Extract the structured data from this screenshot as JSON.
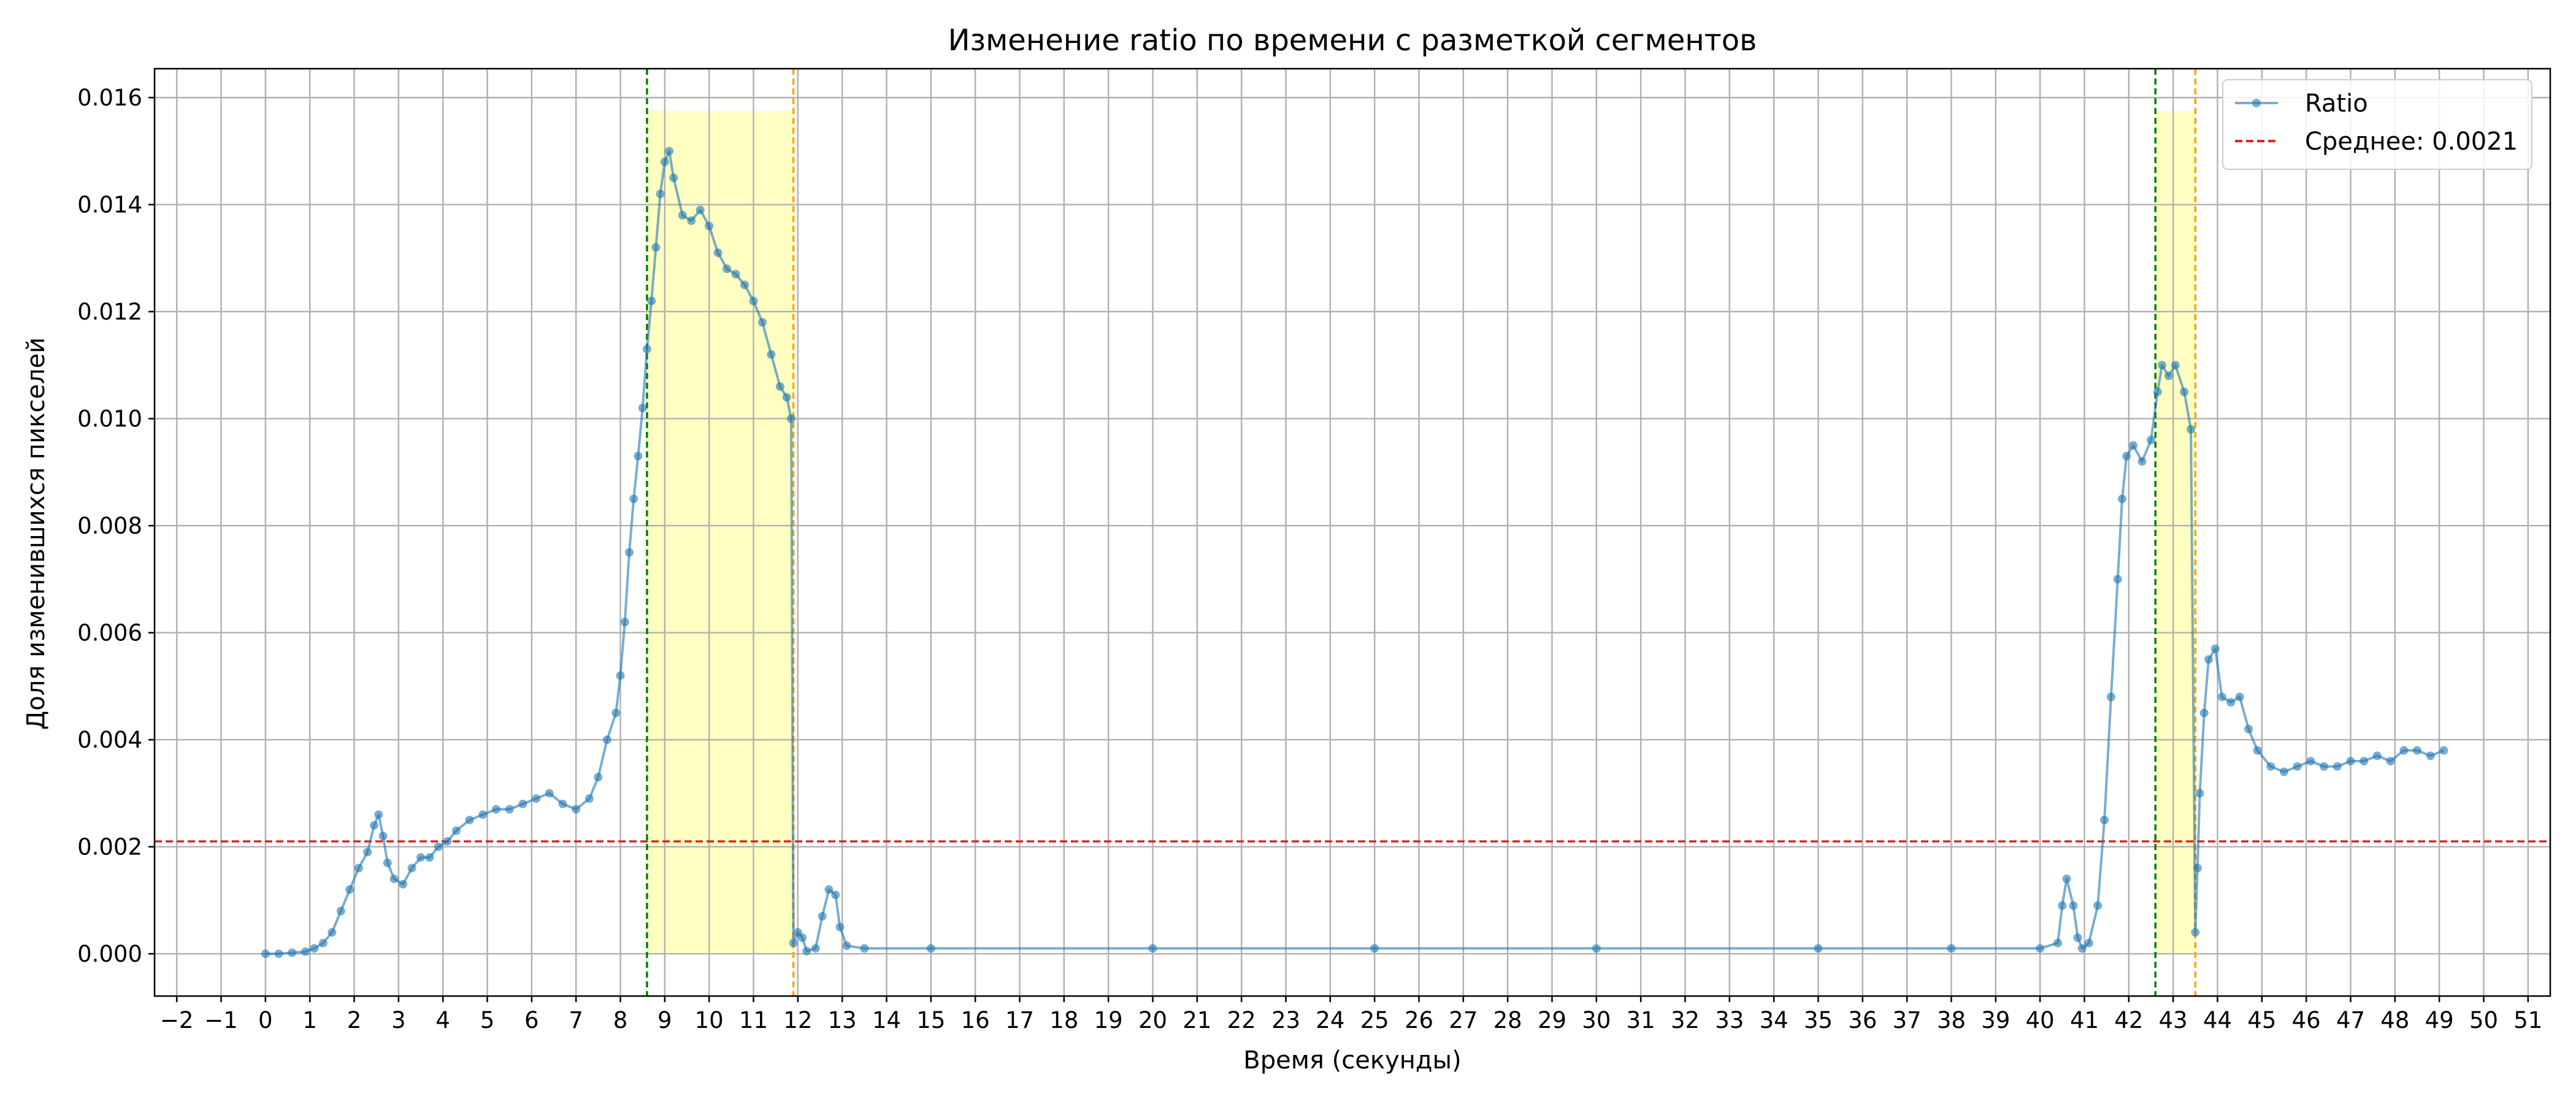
{
  "chart_data": {
    "type": "line",
    "title": "Изменение ratio по времени с разметкой сегментов",
    "xlabel": "Время (секунды)",
    "ylabel": "Доля изменившихся пикселей",
    "xlim": [
      -2.5,
      51.5
    ],
    "ylim": [
      -0.00079,
      0.01654
    ],
    "x_ticks": [
      -2,
      -1,
      0,
      1,
      2,
      3,
      4,
      5,
      6,
      7,
      8,
      9,
      10,
      11,
      12,
      13,
      14,
      15,
      16,
      17,
      18,
      19,
      20,
      21,
      22,
      23,
      24,
      25,
      26,
      27,
      28,
      29,
      30,
      31,
      32,
      33,
      34,
      35,
      36,
      37,
      38,
      39,
      40,
      41,
      42,
      43,
      44,
      45,
      46,
      47,
      48,
      49,
      50,
      51
    ],
    "x_tick_labels": [
      "−2",
      "−1",
      "0",
      "1",
      "2",
      "3",
      "4",
      "5",
      "6",
      "7",
      "8",
      "9",
      "10",
      "11",
      "12",
      "13",
      "14",
      "15",
      "16",
      "17",
      "18",
      "19",
      "20",
      "21",
      "22",
      "23",
      "24",
      "25",
      "26",
      "27",
      "28",
      "29",
      "30",
      "31",
      "32",
      "33",
      "34",
      "35",
      "36",
      "37",
      "38",
      "39",
      "40",
      "41",
      "42",
      "43",
      "44",
      "45",
      "46",
      "47",
      "48",
      "49",
      "50",
      "51"
    ],
    "y_ticks": [
      0,
      0.002,
      0.004,
      0.006,
      0.008,
      0.01,
      0.012,
      0.014,
      0.016
    ],
    "y_tick_labels": [
      "0.000",
      "0.002",
      "0.004",
      "0.006",
      "0.008",
      "0.010",
      "0.012",
      "0.014",
      "0.016"
    ],
    "grid": true,
    "legend_position": "top-right",
    "series": [
      {
        "name": "Ratio",
        "color": "#1f77b4",
        "points": [
          [
            0.0,
            0.0
          ],
          [
            0.3,
            0.0
          ],
          [
            0.6,
            2e-05
          ],
          [
            0.9,
            4e-05
          ],
          [
            1.1,
            0.0001
          ],
          [
            1.3,
            0.0002
          ],
          [
            1.5,
            0.0004
          ],
          [
            1.7,
            0.0008
          ],
          [
            1.9,
            0.0012
          ],
          [
            2.1,
            0.0016
          ],
          [
            2.3,
            0.0019
          ],
          [
            2.45,
            0.0024
          ],
          [
            2.55,
            0.0026
          ],
          [
            2.65,
            0.0022
          ],
          [
            2.75,
            0.0017
          ],
          [
            2.9,
            0.0014
          ],
          [
            3.1,
            0.0013
          ],
          [
            3.3,
            0.0016
          ],
          [
            3.5,
            0.0018
          ],
          [
            3.7,
            0.0018
          ],
          [
            3.9,
            0.002
          ],
          [
            4.1,
            0.0021
          ],
          [
            4.3,
            0.0023
          ],
          [
            4.6,
            0.0025
          ],
          [
            4.9,
            0.0026
          ],
          [
            5.2,
            0.0027
          ],
          [
            5.5,
            0.0027
          ],
          [
            5.8,
            0.0028
          ],
          [
            6.1,
            0.0029
          ],
          [
            6.4,
            0.003
          ],
          [
            6.7,
            0.0028
          ],
          [
            7.0,
            0.0027
          ],
          [
            7.3,
            0.0029
          ],
          [
            7.5,
            0.0033
          ],
          [
            7.7,
            0.004
          ],
          [
            7.9,
            0.0045
          ],
          [
            8.0,
            0.0052
          ],
          [
            8.1,
            0.0062
          ],
          [
            8.2,
            0.0075
          ],
          [
            8.3,
            0.0085
          ],
          [
            8.4,
            0.0093
          ],
          [
            8.5,
            0.0102
          ],
          [
            8.6,
            0.0113
          ],
          [
            8.7,
            0.0122
          ],
          [
            8.8,
            0.0132
          ],
          [
            8.9,
            0.0142
          ],
          [
            9.0,
            0.0148
          ],
          [
            9.1,
            0.015
          ],
          [
            9.2,
            0.0145
          ],
          [
            9.4,
            0.0138
          ],
          [
            9.6,
            0.0137
          ],
          [
            9.8,
            0.0139
          ],
          [
            10.0,
            0.0136
          ],
          [
            10.2,
            0.0131
          ],
          [
            10.4,
            0.0128
          ],
          [
            10.6,
            0.0127
          ],
          [
            10.8,
            0.0125
          ],
          [
            11.0,
            0.0122
          ],
          [
            11.2,
            0.0118
          ],
          [
            11.4,
            0.0112
          ],
          [
            11.6,
            0.0106
          ],
          [
            11.75,
            0.0104
          ],
          [
            11.85,
            0.01
          ],
          [
            11.9,
            0.0002
          ],
          [
            12.0,
            0.0004
          ],
          [
            12.1,
            0.0003
          ],
          [
            12.2,
            5e-05
          ],
          [
            12.4,
            0.0001
          ],
          [
            12.55,
            0.0007
          ],
          [
            12.7,
            0.0012
          ],
          [
            12.85,
            0.0011
          ],
          [
            12.95,
            0.0005
          ],
          [
            13.1,
            0.00015
          ],
          [
            13.5,
            0.0001
          ],
          [
            15.0,
            0.0001
          ],
          [
            20.0,
            0.0001
          ],
          [
            25.0,
            0.0001
          ],
          [
            30.0,
            0.0001
          ],
          [
            35.0,
            0.0001
          ],
          [
            38.0,
            0.0001
          ],
          [
            40.0,
            0.0001
          ],
          [
            40.4,
            0.0002
          ],
          [
            40.5,
            0.0009
          ],
          [
            40.6,
            0.0014
          ],
          [
            40.75,
            0.0009
          ],
          [
            40.85,
            0.0003
          ],
          [
            40.95,
            0.0001
          ],
          [
            41.1,
            0.0002
          ],
          [
            41.3,
            0.0009
          ],
          [
            41.45,
            0.0025
          ],
          [
            41.6,
            0.0048
          ],
          [
            41.75,
            0.007
          ],
          [
            41.85,
            0.0085
          ],
          [
            41.95,
            0.0093
          ],
          [
            42.1,
            0.0095
          ],
          [
            42.3,
            0.0092
          ],
          [
            42.5,
            0.0096
          ],
          [
            42.65,
            0.0105
          ],
          [
            42.75,
            0.011
          ],
          [
            42.9,
            0.0108
          ],
          [
            43.05,
            0.011
          ],
          [
            43.25,
            0.0105
          ],
          [
            43.4,
            0.0098
          ],
          [
            43.5,
            0.0004
          ],
          [
            43.55,
            0.0016
          ],
          [
            43.6,
            0.003
          ],
          [
            43.7,
            0.0045
          ],
          [
            43.8,
            0.0055
          ],
          [
            43.95,
            0.0057
          ],
          [
            44.1,
            0.0048
          ],
          [
            44.3,
            0.0047
          ],
          [
            44.5,
            0.0048
          ],
          [
            44.7,
            0.0042
          ],
          [
            44.9,
            0.0038
          ],
          [
            45.2,
            0.0035
          ],
          [
            45.5,
            0.0034
          ],
          [
            45.8,
            0.0035
          ],
          [
            46.1,
            0.0036
          ],
          [
            46.4,
            0.0035
          ],
          [
            46.7,
            0.0035
          ],
          [
            47.0,
            0.0036
          ],
          [
            47.3,
            0.0036
          ],
          [
            47.6,
            0.0037
          ],
          [
            47.9,
            0.0036
          ],
          [
            48.2,
            0.0038
          ],
          [
            48.5,
            0.0038
          ],
          [
            48.8,
            0.0037
          ],
          [
            49.1,
            0.0038
          ]
        ]
      },
      {
        "name": "Среднее: 0.0021",
        "type": "hline",
        "y": 0.0021,
        "color": "#d62728",
        "style": "dashed"
      }
    ],
    "segments": [
      {
        "start": 8.6,
        "end": 11.9,
        "fill": "#ffffb3",
        "top": 0.01575,
        "start_line_color": "#008000",
        "end_line_color": "#ffa500"
      },
      {
        "start": 42.6,
        "end": 43.5,
        "fill": "#ffffb3",
        "top": 0.01575,
        "start_line_color": "#008000",
        "end_line_color": "#ffa500"
      }
    ]
  }
}
